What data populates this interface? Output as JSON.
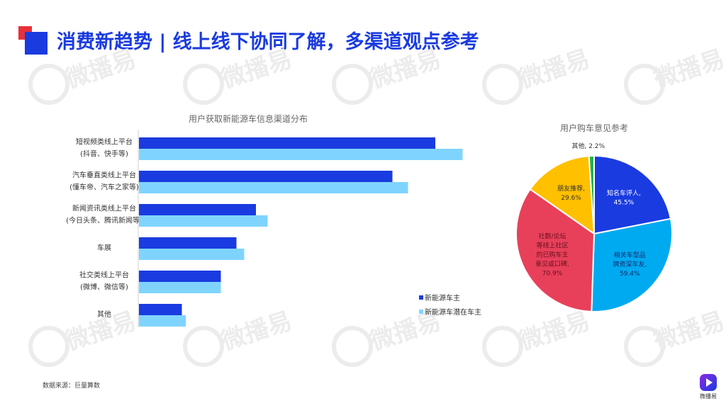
{
  "page": {
    "title": "消费新趋势 | 线上线下协同了解，多渠道观点参考",
    "watermark": "微播易",
    "source": "数据来源：巨量算数",
    "brand": "微播易"
  },
  "chart_data": [
    {
      "type": "bar",
      "orientation": "horizontal",
      "title": "用户获取新能源车信息渠道分布",
      "categories": [
        "短视频类线上平台\n(抖音、快手等)",
        "汽车垂直类线上平台\n(懂车帝、汽车之家等)",
        "新闻资讯类线上平台\n(今日头条、腾讯新闻等)",
        "车展",
        "社交类线上平台\n(微博、微信等)",
        "其他"
      ],
      "series": [
        {
          "name": "新能源车主",
          "color": "#1a3be0",
          "values": [
            76,
            65,
            30,
            25,
            21,
            11
          ]
        },
        {
          "name": "新能源车潜在车主",
          "color": "#7fd4ff",
          "values": [
            83,
            69,
            33,
            27,
            21,
            12
          ]
        }
      ],
      "xlim": [
        0,
        100
      ],
      "legend": "bottom-right"
    },
    {
      "type": "pie",
      "title": "用户购车意见参考",
      "slices": [
        {
          "label": "知名车评人,\n45.5%",
          "value": 45.5,
          "color": "#1a3be0",
          "text_color": "#ffffff"
        },
        {
          "label": "相关车型品\n牌资深车友,\n59.4%",
          "value": 59.4,
          "color": "#00aaf0",
          "text_color": "#1a2a6e"
        },
        {
          "label": "社群/论坛\n等线上社区\n的已购车主\n意见或口碑,\n70.9%",
          "value": 70.9,
          "color": "#e8405a",
          "text_color": "#6a1020"
        },
        {
          "label": "朋友推荐,\n29.6%",
          "value": 29.6,
          "color": "#ffc000",
          "text_color": "#333333"
        },
        {
          "label": "其他, 2.2%",
          "value": 2.2,
          "color": "#22b14c",
          "text_color": "#333333"
        }
      ]
    }
  ]
}
